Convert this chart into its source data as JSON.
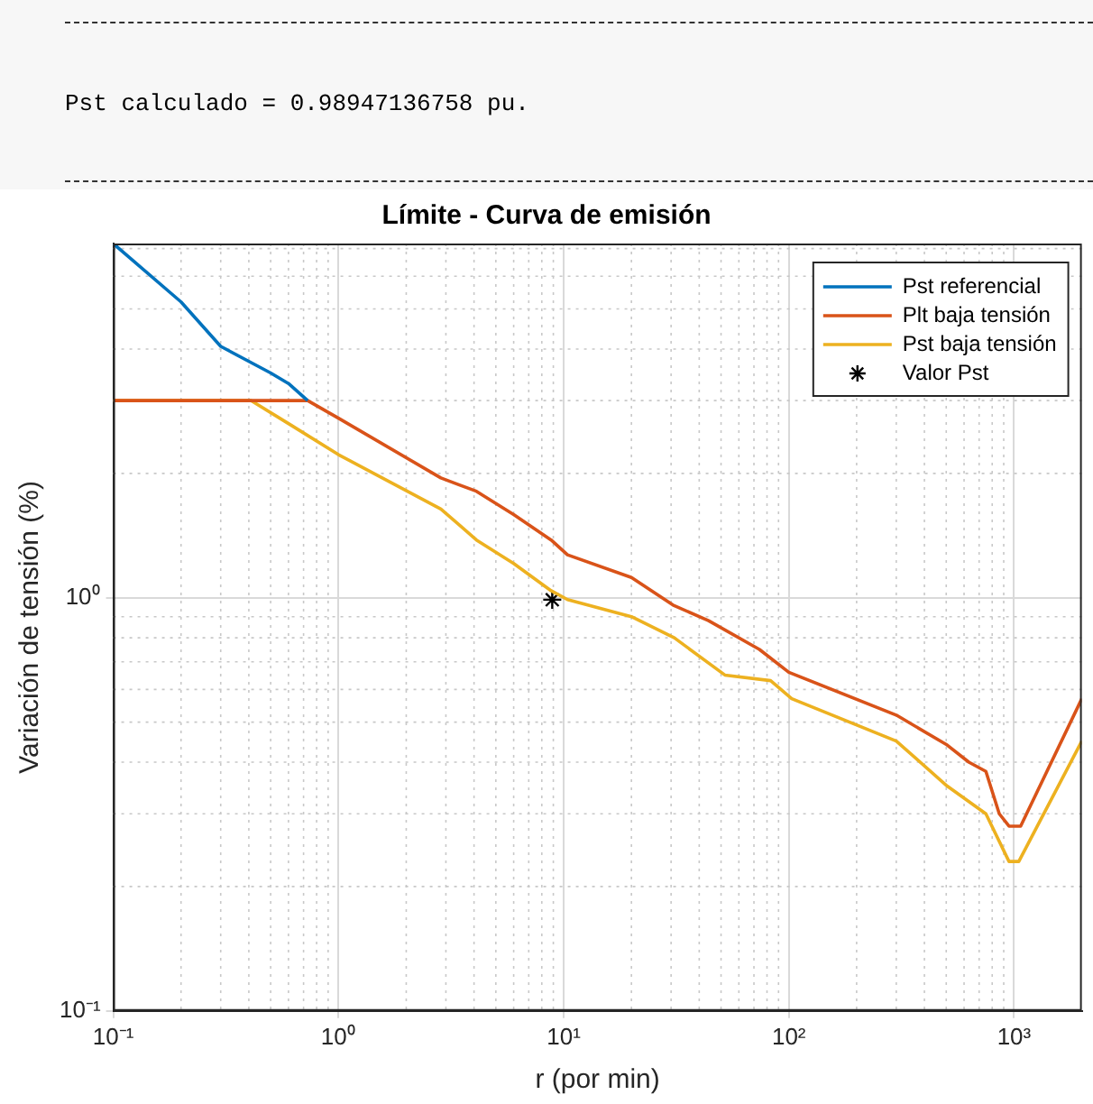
{
  "chart_data": {
    "type": "line",
    "title": "Límite - Curva de emisión",
    "xlabel": "r (por min)",
    "ylabel": "Variación de tensión (%)",
    "annotations": [
      "Pst calculado = 0.98947136758 pu."
    ],
    "log": "xy",
    "xlim": [
      0.1,
      2000
    ],
    "ylim": [
      0.1,
      7.2
    ],
    "xticks": [
      {
        "value": 0.1,
        "label": "10⁻¹"
      },
      {
        "value": 1,
        "label": "10⁰"
      },
      {
        "value": 10,
        "label": "10¹"
      },
      {
        "value": 100,
        "label": "10²"
      },
      {
        "value": 1000,
        "label": "10³"
      }
    ],
    "yticks": [
      {
        "value": 0.1,
        "label": "10⁻¹"
      },
      {
        "value": 1,
        "label": "10⁰"
      }
    ],
    "grid": true,
    "legend": "top right",
    "line_style": "solid",
    "series": [
      {
        "name": "Pst referencial",
        "color": "#0072bd",
        "x": [
          0.1,
          0.2,
          0.3,
          0.5,
          0.6,
          0.73
        ],
        "values": [
          7.2,
          5.2,
          4.06,
          3.5,
          3.3,
          3.0
        ]
      },
      {
        "name": "Plt baja tensión",
        "color": "#d95319",
        "x": [
          0.1,
          0.73,
          1,
          2.85,
          4.1,
          6,
          8.8,
          10.4,
          20,
          30.6,
          44,
          74,
          100,
          300,
          505,
          630,
          750,
          860,
          950,
          1070,
          2000
        ],
        "values": [
          3.0,
          3.0,
          2.72,
          1.95,
          1.81,
          1.59,
          1.38,
          1.27,
          1.12,
          0.96,
          0.88,
          0.75,
          0.66,
          0.52,
          0.44,
          0.4,
          0.38,
          0.3,
          0.28,
          0.28,
          0.57
        ]
      },
      {
        "name": "Pst baja tensión",
        "color": "#edb120",
        "x": [
          0.1,
          0.41,
          0.6,
          1,
          2.85,
          4.1,
          6,
          8.8,
          10.4,
          20,
          31,
          52,
          83,
          103,
          300,
          505,
          750,
          950,
          1050,
          2000
        ],
        "values": [
          3.0,
          3.0,
          2.64,
          2.22,
          1.64,
          1.38,
          1.21,
          1.04,
          0.99,
          0.9,
          0.8,
          0.65,
          0.63,
          0.57,
          0.45,
          0.35,
          0.3,
          0.23,
          0.23,
          0.45
        ]
      },
      {
        "name": "Valor Pst",
        "type": "scatter",
        "marker": "cross",
        "color": "#000000",
        "x": [
          8.9
        ],
        "values": [
          0.989
        ]
      }
    ]
  }
}
